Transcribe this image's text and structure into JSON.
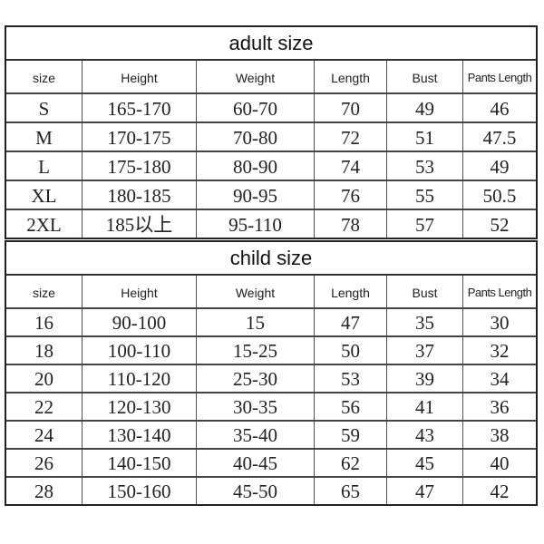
{
  "adult": {
    "title": "adult size",
    "headers": [
      "size",
      "Height",
      "Weight",
      "Length",
      "Bust",
      "Pants Length"
    ],
    "rows": [
      [
        "S",
        "165-170",
        "60-70",
        "70",
        "49",
        "46"
      ],
      [
        "M",
        "170-175",
        "70-80",
        "72",
        "51",
        "47.5"
      ],
      [
        "L",
        "175-180",
        "80-90",
        "74",
        "53",
        "49"
      ],
      [
        "XL",
        "180-185",
        "90-95",
        "76",
        "55",
        "50.5"
      ],
      [
        "2XL",
        "185以上",
        "95-110",
        "78",
        "57",
        "52"
      ]
    ]
  },
  "child": {
    "title": "child size",
    "headers": [
      "size",
      "Height",
      "Weight",
      "Length",
      "Bust",
      "Pants Length"
    ],
    "rows": [
      [
        "16",
        "90-100",
        "15",
        "47",
        "35",
        "30"
      ],
      [
        "18",
        "100-110",
        "15-25",
        "50",
        "37",
        "32"
      ],
      [
        "20",
        "110-120",
        "25-30",
        "53",
        "39",
        "34"
      ],
      [
        "22",
        "120-130",
        "30-35",
        "56",
        "41",
        "36"
      ],
      [
        "24",
        "130-140",
        "35-40",
        "59",
        "43",
        "38"
      ],
      [
        "26",
        "140-150",
        "40-45",
        "62",
        "45",
        "40"
      ],
      [
        "28",
        "150-160",
        "45-50",
        "65",
        "47",
        "42"
      ]
    ]
  }
}
